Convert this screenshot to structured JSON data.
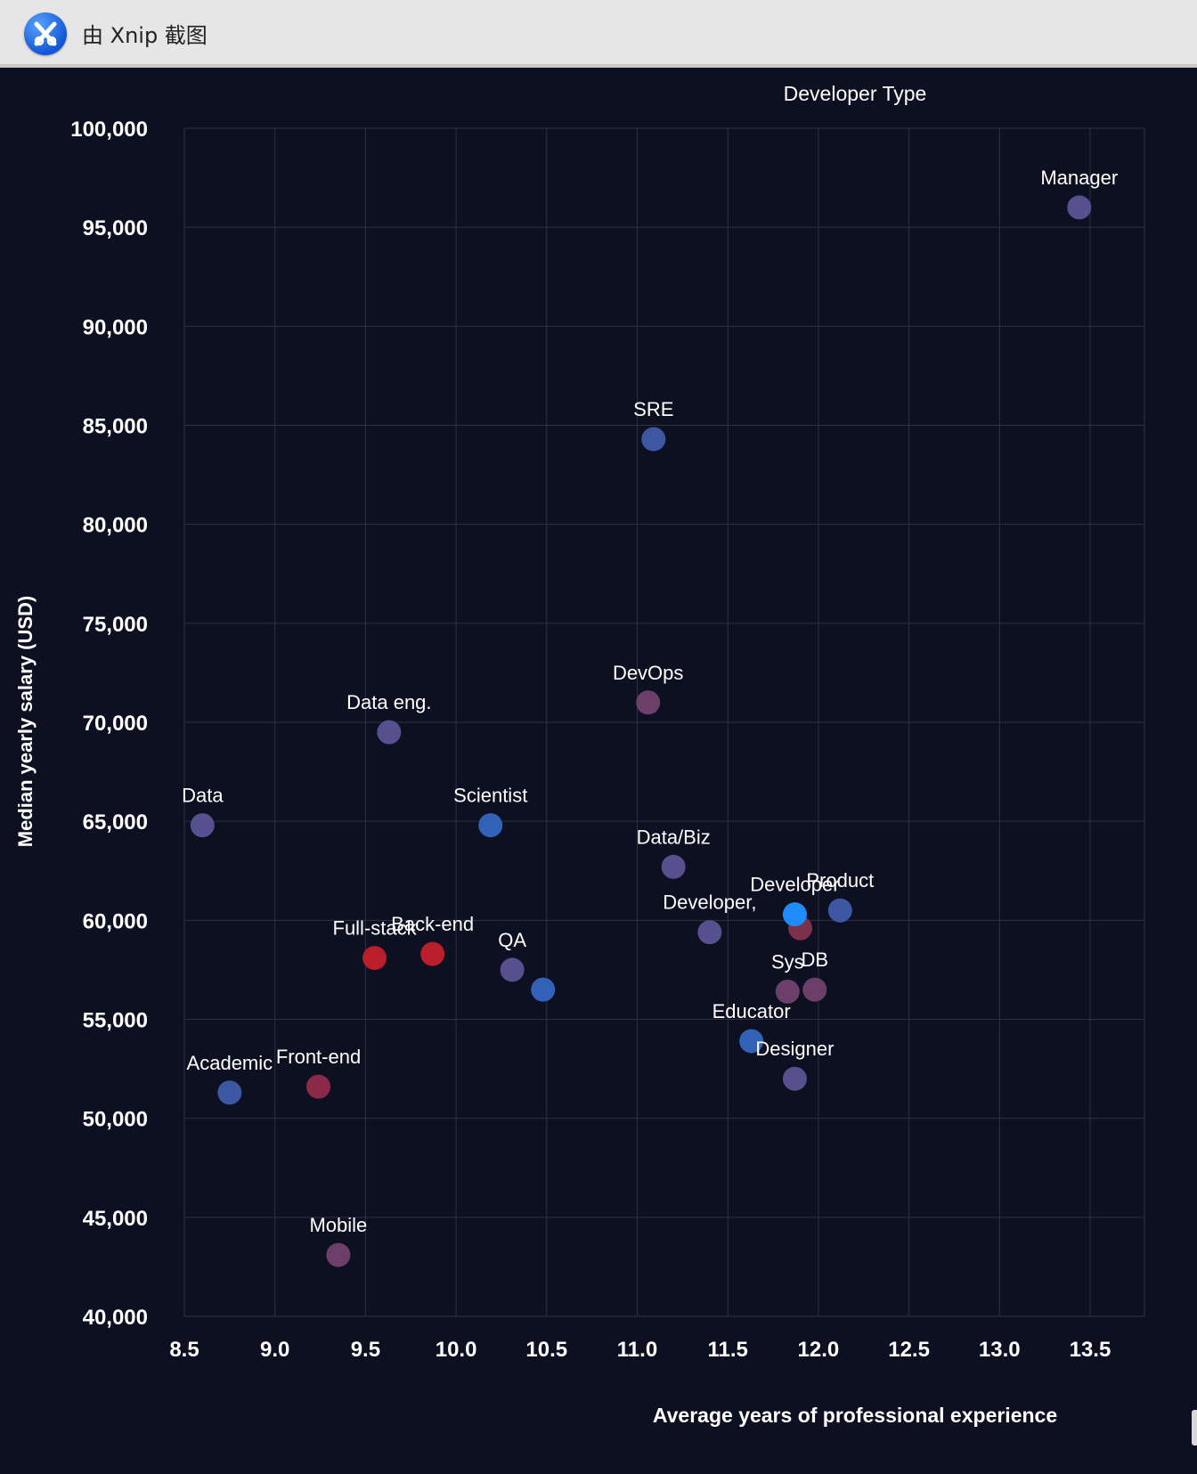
{
  "window": {
    "title": "由 Xnip 截图",
    "icon": "xnip-icon"
  },
  "chart_data": {
    "type": "scatter",
    "legend_title": "Developer Type",
    "xlabel": "Average years of professional experience",
    "ylabel": "Median yearly salary (USD)",
    "xlim": [
      8.5,
      13.8
    ],
    "ylim": [
      40000,
      100000
    ],
    "xticks": [
      8.5,
      9.0,
      9.5,
      10.0,
      10.5,
      11.0,
      11.5,
      12.0,
      12.5,
      13.0,
      13.5
    ],
    "xtick_labels": [
      "8.5",
      "9.0",
      "9.5",
      "10.0",
      "10.5",
      "11.0",
      "11.5",
      "12.0",
      "12.5",
      "13.0",
      "13.5"
    ],
    "yticks": [
      40000,
      45000,
      50000,
      55000,
      60000,
      65000,
      70000,
      75000,
      80000,
      85000,
      90000,
      95000,
      100000
    ],
    "ytick_labels": [
      "40,000",
      "45,000",
      "50,000",
      "55,000",
      "60,000",
      "65,000",
      "70,000",
      "75,000",
      "80,000",
      "85,000",
      "90,000",
      "95,000",
      "100,000"
    ],
    "grid": true,
    "points": [
      {
        "label": "Manager",
        "x": 13.44,
        "y": 96000,
        "color": "#56508f"
      },
      {
        "label": "SRE",
        "x": 11.09,
        "y": 84300,
        "color": "#3e57a3"
      },
      {
        "label": "DevOps",
        "x": 11.06,
        "y": 71000,
        "color": "#6b3f6a"
      },
      {
        "label": "Data eng.",
        "x": 9.63,
        "y": 69500,
        "color": "#56508f"
      },
      {
        "label": "Data",
        "x": 8.6,
        "y": 64800,
        "color": "#56508f"
      },
      {
        "label": "Scientist",
        "x": 10.19,
        "y": 64800,
        "color": "#3262b8"
      },
      {
        "label": "Data/Biz",
        "x": 11.2,
        "y": 62700,
        "color": "#56508f"
      },
      {
        "label": "Product",
        "x": 12.12,
        "y": 60500,
        "color": "#3e57a3"
      },
      {
        "label": "Developer,",
        "x": 11.4,
        "y": 59400,
        "color": "#56508f"
      },
      {
        "label": "",
        "x": 11.9,
        "y": 59600,
        "color": "#7a3149"
      },
      {
        "label": "Developer",
        "x": 11.87,
        "y": 60300,
        "color": "#1e8cff"
      },
      {
        "label": "Full-stack",
        "x": 9.55,
        "y": 58100,
        "color": "#b81f2a"
      },
      {
        "label": "Back-end",
        "x": 9.87,
        "y": 58300,
        "color": "#b81f2a"
      },
      {
        "label": "QA",
        "x": 10.31,
        "y": 57500,
        "color": "#56508f"
      },
      {
        "label": "",
        "x": 10.48,
        "y": 56500,
        "color": "#3262b8"
      },
      {
        "label": "Sys",
        "x": 11.83,
        "y": 56400,
        "color": "#6b3f6a"
      },
      {
        "label": "DB",
        "x": 11.98,
        "y": 56500,
        "color": "#6b3f6a"
      },
      {
        "label": "Educator",
        "x": 11.63,
        "y": 53900,
        "color": "#3262b8"
      },
      {
        "label": "Designer",
        "x": 11.87,
        "y": 52000,
        "color": "#56508f"
      },
      {
        "label": "Academic",
        "x": 8.75,
        "y": 51300,
        "color": "#3e57a3"
      },
      {
        "label": "Front-end",
        "x": 9.24,
        "y": 51600,
        "color": "#8a2a48"
      },
      {
        "label": "Mobile",
        "x": 9.35,
        "y": 43100,
        "color": "#6b3f6a"
      }
    ]
  }
}
